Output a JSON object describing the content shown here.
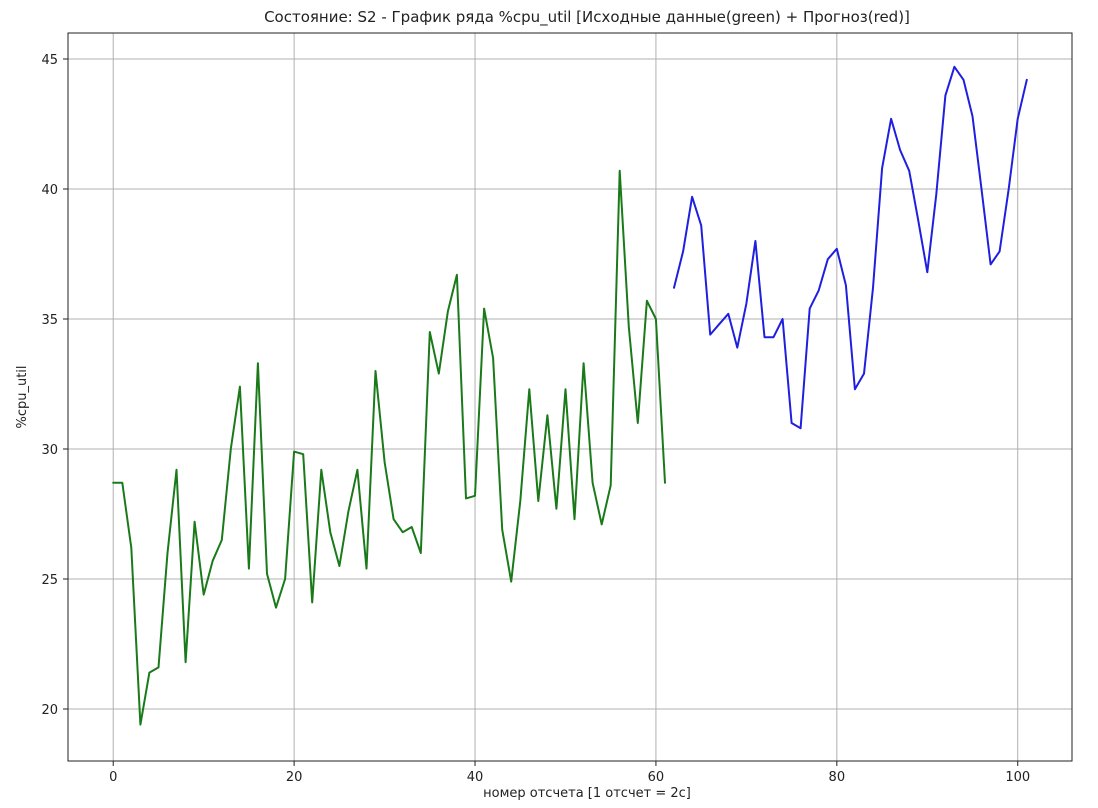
{
  "chart_data": {
    "type": "line",
    "title": "Состояние: S2 - График ряда %cpu_util [Исходные данные(green) + Прогноз(red)]",
    "xlabel": "номер отсчета [1 отсчет = 2с]",
    "ylabel": "%cpu_util",
    "xlim": [
      -5,
      106
    ],
    "ylim": [
      18,
      46
    ],
    "grid": true,
    "xticks": [
      0,
      20,
      40,
      60,
      80,
      100
    ],
    "yticks": [
      20,
      25,
      30,
      35,
      40,
      45
    ],
    "series": [
      {
        "color": "#1a7a1a",
        "x": [
          0,
          1,
          2,
          3,
          4,
          5,
          6,
          7,
          8,
          9,
          10,
          11,
          12,
          13,
          14,
          15,
          16,
          17,
          18,
          19,
          20,
          21,
          22,
          23,
          24,
          25,
          26,
          27,
          28,
          29,
          30,
          31,
          32,
          33,
          34,
          35,
          36,
          37,
          38,
          39,
          40,
          41,
          42,
          43,
          44,
          45,
          46,
          47,
          48,
          49,
          50,
          51,
          52,
          53,
          54,
          55,
          56,
          57,
          58,
          59,
          60,
          61
        ],
        "values": [
          28.7,
          28.7,
          26.2,
          19.4,
          21.4,
          21.6,
          26.0,
          29.2,
          21.8,
          27.2,
          24.4,
          25.7,
          26.5,
          30.0,
          32.4,
          25.4,
          33.3,
          25.2,
          23.9,
          25.0,
          29.9,
          29.8,
          24.1,
          29.2,
          26.8,
          25.5,
          27.6,
          29.2,
          25.4,
          33.0,
          29.5,
          27.3,
          26.8,
          27.0,
          26.0,
          34.5,
          32.9,
          35.3,
          36.7,
          28.1,
          28.2,
          35.4,
          33.5,
          26.9,
          24.9,
          28.0,
          32.3,
          28.0,
          31.3,
          27.7,
          32.3,
          27.3,
          33.3,
          28.7,
          27.1,
          28.6,
          40.7,
          34.7,
          31.0,
          35.7,
          35.0,
          28.7
        ]
      },
      {
        "color": "#1f1fe0",
        "x": [
          62,
          63,
          64,
          65,
          66,
          67,
          68,
          69,
          70,
          71,
          72,
          73,
          74,
          75,
          76,
          77,
          78,
          79,
          80,
          81,
          82,
          83,
          84,
          85,
          86,
          87,
          88,
          89,
          90,
          91,
          92,
          93,
          94,
          95,
          96,
          97,
          98,
          99,
          100,
          101
        ],
        "values": [
          36.2,
          37.6,
          39.7,
          38.6,
          34.4,
          34.8,
          35.2,
          33.9,
          35.6,
          38.0,
          34.3,
          34.3,
          35.0,
          31.0,
          30.8,
          35.4,
          36.1,
          37.3,
          37.7,
          36.3,
          32.3,
          32.9,
          36.2,
          40.8,
          42.7,
          41.5,
          40.7,
          38.8,
          36.8,
          39.8,
          43.6,
          44.7,
          44.2,
          42.8,
          40.0,
          37.1,
          37.6,
          40.0,
          42.7,
          44.2
        ]
      }
    ]
  }
}
